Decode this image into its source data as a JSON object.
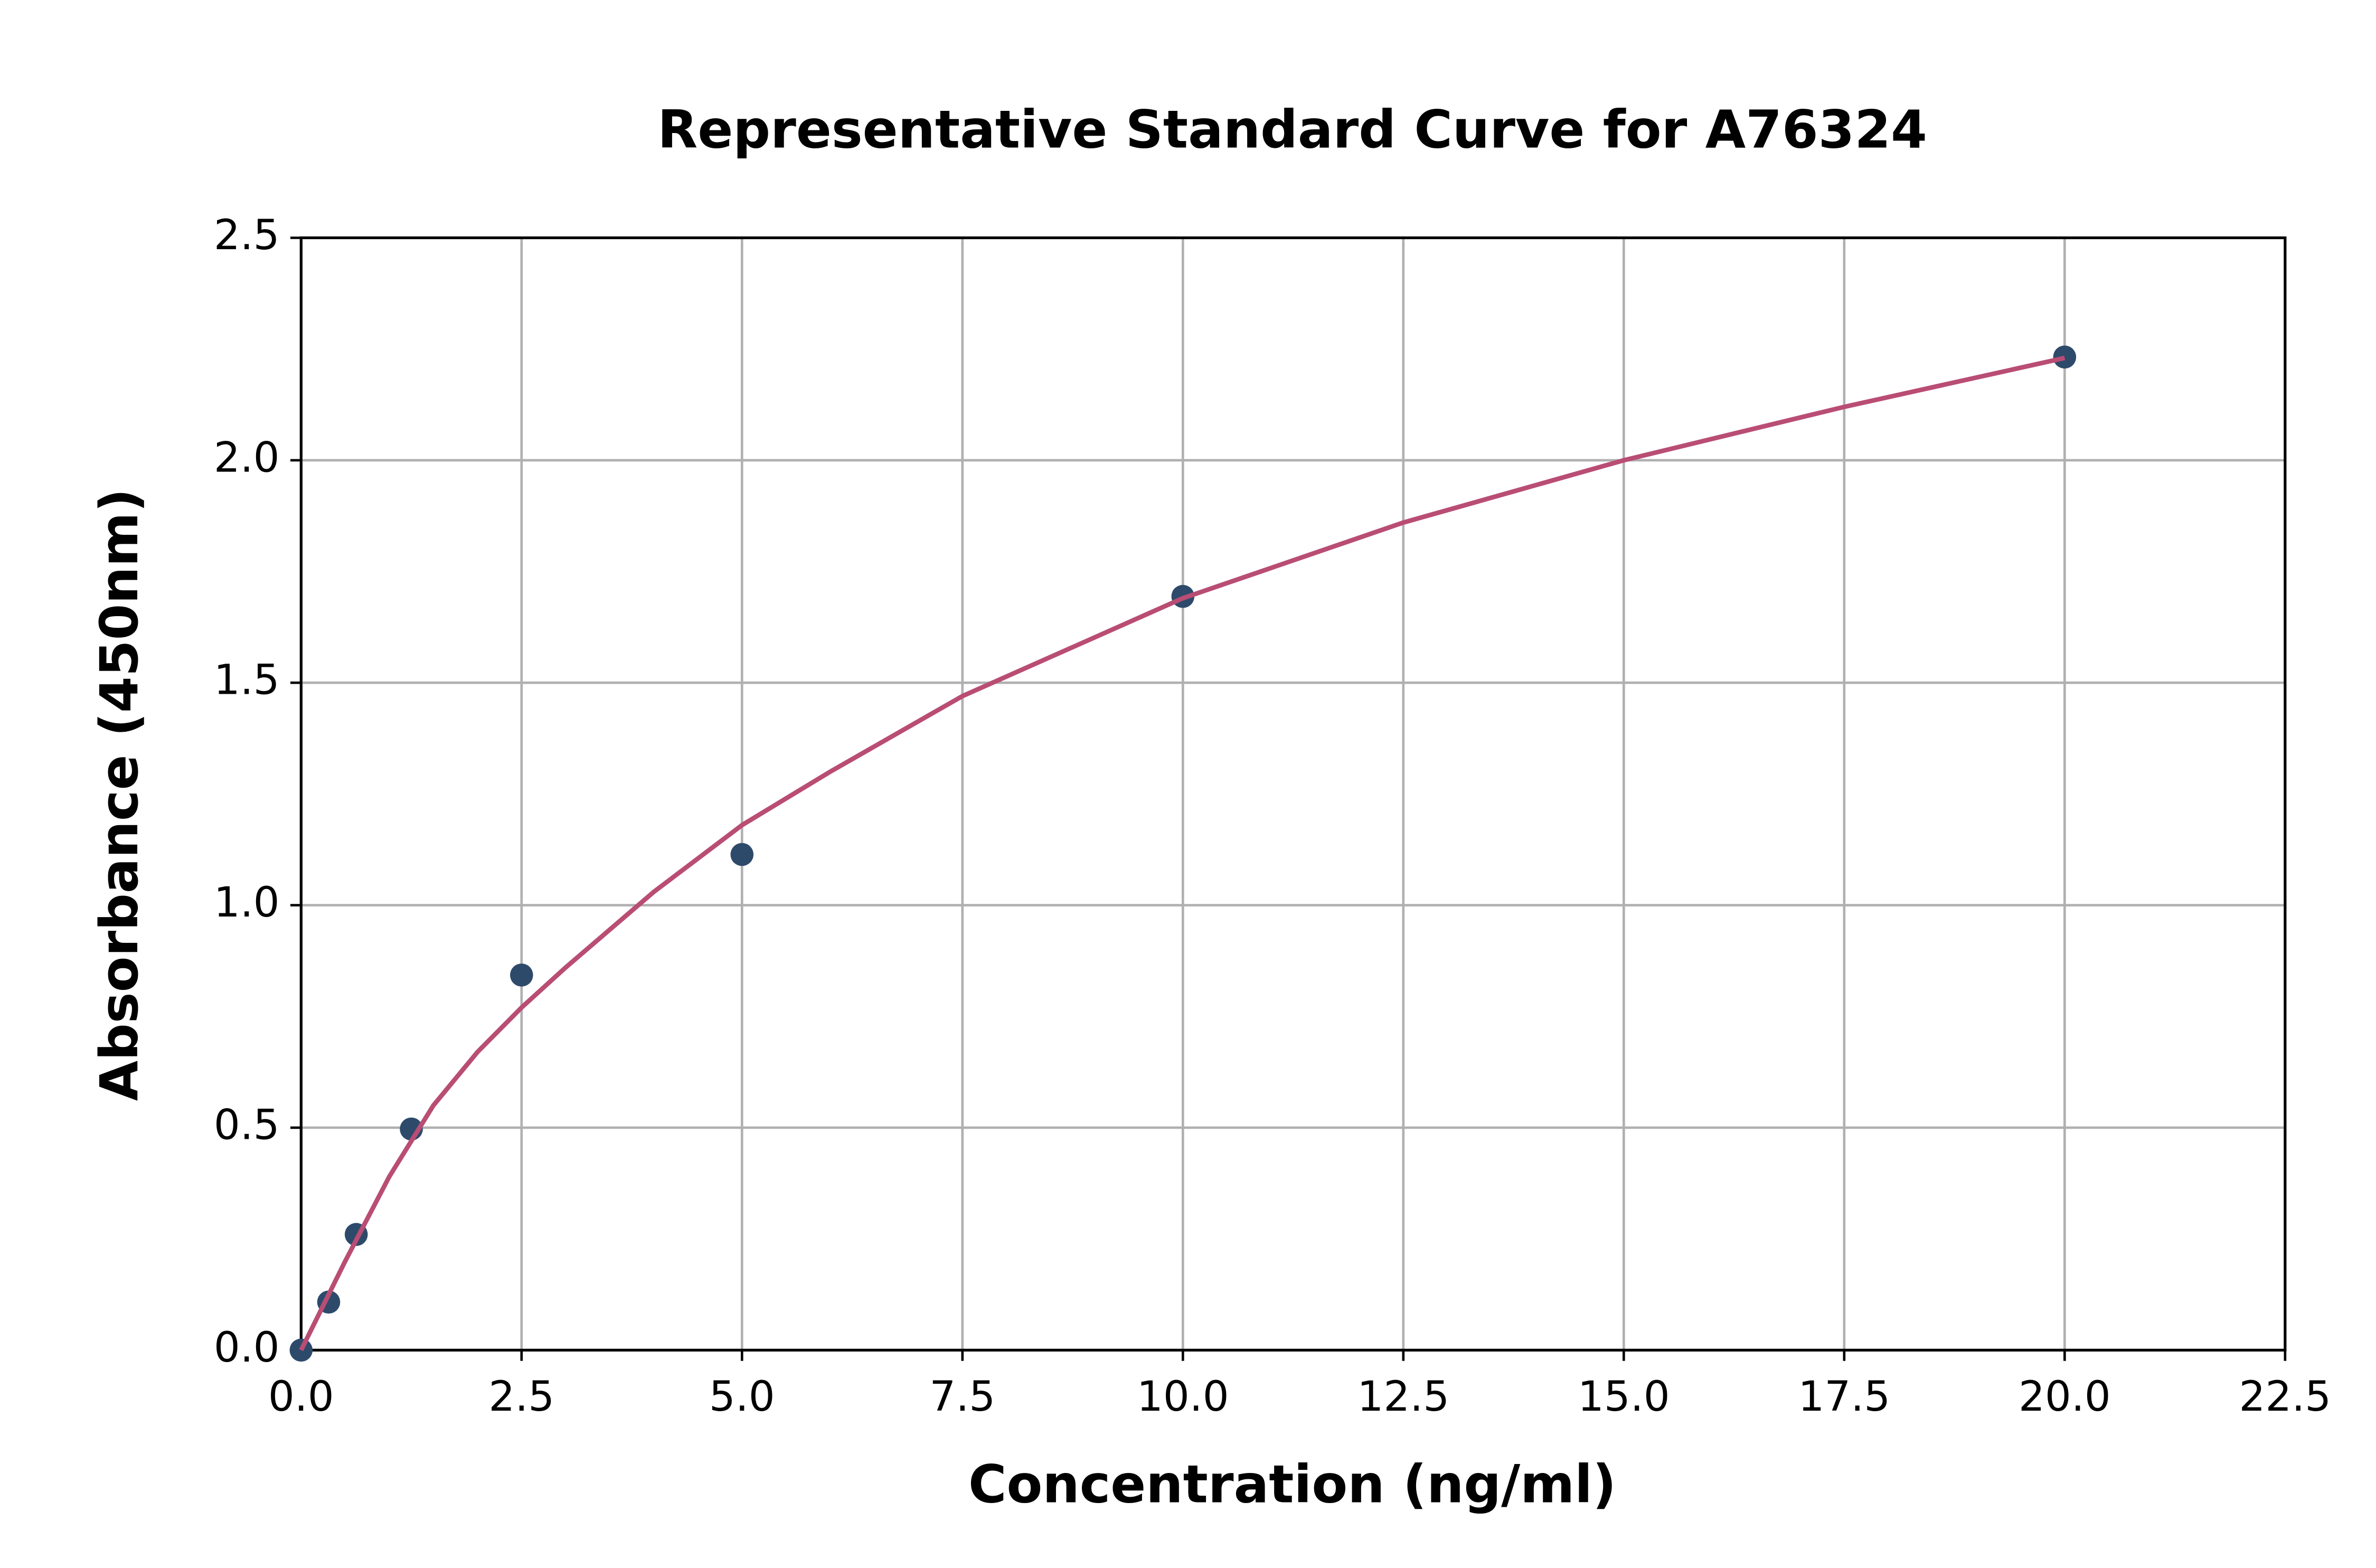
{
  "chart_data": {
    "type": "scatter",
    "title": "Representative Standard Curve for A76324",
    "x_label": "Concentration (ng/ml)",
    "y_label": "Absorbance (450nm)",
    "xlim": [
      0,
      22.5
    ],
    "ylim": [
      0,
      2.5
    ],
    "xticks": [
      {
        "value": 0,
        "label": "0.0"
      },
      2.5,
      {
        "value": 5,
        "label": "5.0"
      },
      7.5,
      {
        "value": 10,
        "label": "10.0"
      },
      12.5,
      {
        "value": 15,
        "label": "15.0"
      },
      17.5,
      {
        "value": 20,
        "label": "20.0"
      },
      22.5
    ],
    "yticks": [
      {
        "value": 0,
        "label": "0.0"
      },
      0.5,
      {
        "value": 1,
        "label": "1.0"
      },
      1.5,
      {
        "value": 2,
        "label": "2.0"
      },
      2.5
    ],
    "grid": true,
    "series": [
      {
        "kind": "points",
        "color": "#2e4a6b",
        "x": [
          0,
          0.3125,
          0.625,
          1.25,
          2.5,
          5,
          10,
          20
        ],
        "values": [
          0,
          0.108,
          0.26,
          0.497,
          0.843,
          1.114,
          1.694,
          2.232
        ]
      },
      {
        "kind": "line",
        "color": "#b94d74",
        "x": [
          0,
          0.25,
          0.5,
          1,
          1.5,
          2,
          2.5,
          3,
          4,
          5,
          6,
          7.5,
          10,
          12.5,
          15,
          17.5,
          20
        ],
        "values": [
          0,
          0.1,
          0.2,
          0.39,
          0.55,
          0.67,
          0.77,
          0.86,
          1.03,
          1.18,
          1.3,
          1.47,
          1.69,
          1.86,
          2.0,
          2.12,
          2.23
        ]
      }
    ]
  }
}
